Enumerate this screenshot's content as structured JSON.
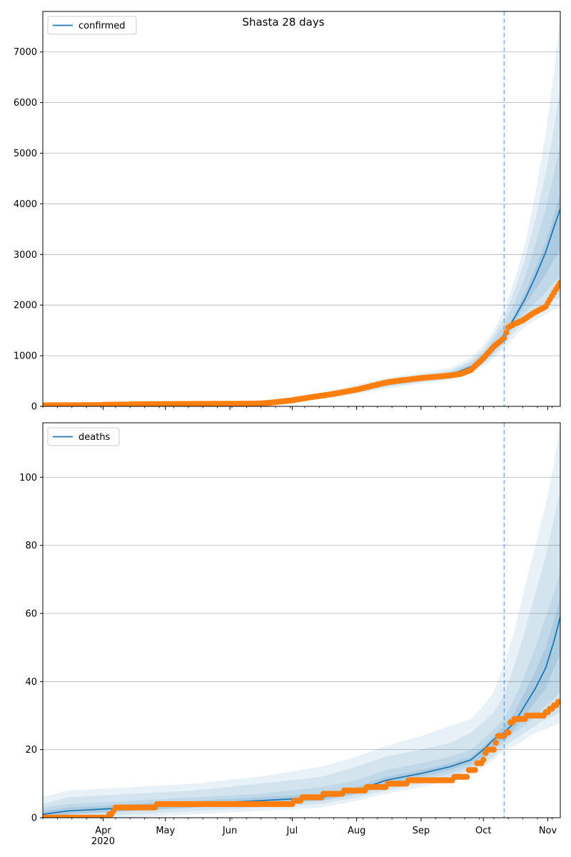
{
  "figure": {
    "title": "Shasta 28 days"
  },
  "chart_data": [
    {
      "type": "line",
      "title": "Shasta 28 days",
      "legend": {
        "label": "confirmed",
        "placement": "upper-left"
      },
      "xlim": [
        "2020-03-03",
        "2020-11-07"
      ],
      "ylim": [
        0,
        7800
      ],
      "yticks": [
        0,
        1000,
        2000,
        3000,
        4000,
        5000,
        6000,
        7000
      ],
      "grid": "y",
      "forecast_start": "2020-10-11",
      "model": {
        "x": [
          "2020-03-03",
          "2020-04-01",
          "2020-05-01",
          "2020-06-01",
          "2020-06-15",
          "2020-07-01",
          "2020-07-15",
          "2020-08-01",
          "2020-08-15",
          "2020-09-01",
          "2020-09-15",
          "2020-09-25",
          "2020-10-01",
          "2020-10-06",
          "2020-10-11",
          "2020-10-16",
          "2020-10-21",
          "2020-10-26",
          "2020-10-31",
          "2020-11-04",
          "2020-11-07"
        ],
        "y": [
          20,
          30,
          40,
          45,
          55,
          110,
          190,
          310,
          430,
          530,
          620,
          780,
          950,
          1150,
          1420,
          1750,
          2120,
          2560,
          3050,
          3550,
          3900
        ],
        "bands": [
          {
            "lo": [
              5,
              15,
              25,
              30,
              40,
              80,
              150,
              250,
              350,
              450,
              520,
              650,
              790,
              950,
              1150,
              1380,
              1580,
              1700,
              1820,
              1920,
              1960
            ],
            "hi": [
              40,
              50,
              60,
              70,
              90,
              160,
              260,
              420,
              560,
              660,
              760,
              960,
              1200,
              1500,
              1900,
              2500,
              3200,
              4200,
              5400,
              6600,
              7800
            ],
            "alpha": 0.1
          },
          {
            "lo": [
              10,
              20,
              30,
              35,
              45,
              90,
              165,
              270,
              380,
              480,
              550,
              690,
              840,
              1010,
              1230,
              1480,
              1700,
              1850,
              1990,
              2100,
              2150
            ],
            "hi": [
              32,
              42,
              50,
              58,
              75,
              140,
              230,
              380,
              510,
              610,
              710,
              900,
              1120,
              1400,
              1750,
              2300,
              2900,
              3700,
              4600,
              5500,
              6300
            ],
            "alpha": 0.1
          },
          {
            "lo": [
              12,
              22,
              32,
              38,
              48,
              95,
              175,
              285,
              400,
              500,
              575,
              720,
              880,
              1060,
              1300,
              1580,
              1850,
              2050,
              2250,
              2450,
              2550
            ],
            "hi": [
              28,
              38,
              46,
              52,
              66,
              128,
              210,
              350,
              475,
              575,
              675,
              860,
              1060,
              1320,
              1620,
              2050,
              2550,
              3200,
              3900,
              4600,
              5200
            ],
            "alpha": 0.1
          },
          {
            "lo": [
              15,
              25,
              35,
              40,
              50,
              100,
              180,
              295,
              415,
              515,
              595,
              750,
              920,
              1110,
              1370,
              1680,
              2000,
              2300,
              2600,
              2900,
              3100
            ],
            "hi": [
              25,
              35,
              43,
              48,
              60,
              118,
              198,
              325,
              445,
              545,
              645,
              810,
              980,
              1190,
              1470,
              1820,
              2240,
              2720,
              3250,
              3800,
              4200
            ],
            "alpha": 0.12
          }
        ]
      },
      "observed": {
        "x": [
          "2020-03-03",
          "2020-03-31",
          "2020-04-01",
          "2020-04-18",
          "2020-05-01",
          "2020-06-01",
          "2020-06-15",
          "2020-06-20",
          "2020-07-01",
          "2020-07-10",
          "2020-07-20",
          "2020-08-01",
          "2020-08-10",
          "2020-08-15",
          "2020-08-20",
          "2020-09-01",
          "2020-09-10",
          "2020-09-15",
          "2020-09-20",
          "2020-09-25",
          "2020-10-01",
          "2020-10-06",
          "2020-10-11",
          "2020-10-13",
          "2020-10-16",
          "2020-10-20",
          "2020-10-25",
          "2020-10-31",
          "2020-11-04",
          "2020-11-07"
        ],
        "y": [
          20,
          25,
          30,
          40,
          45,
          50,
          55,
          70,
          120,
          180,
          240,
          330,
          420,
          470,
          500,
          560,
          590,
          610,
          640,
          720,
          950,
          1180,
          1350,
          1560,
          1630,
          1700,
          1840,
          1970,
          2250,
          2440
        ]
      }
    },
    {
      "type": "line",
      "legend": {
        "label": "deaths",
        "placement": "upper-left"
      },
      "xlim": [
        "2020-03-03",
        "2020-11-07"
      ],
      "ylim": [
        0,
        116
      ],
      "yticks": [
        0,
        20,
        40,
        60,
        80,
        100
      ],
      "grid": "y",
      "forecast_start": "2020-10-11",
      "x_tick_labels": [
        "Apr",
        "May",
        "Jun",
        "Jul",
        "Aug",
        "Sep",
        "Oct",
        "Nov"
      ],
      "x_tick_dates": [
        "2020-04-01",
        "2020-05-01",
        "2020-06-01",
        "2020-07-01",
        "2020-08-01",
        "2020-09-01",
        "2020-10-01",
        "2020-11-01"
      ],
      "year_label": "2020",
      "model": {
        "x": [
          "2020-03-03",
          "2020-03-15",
          "2020-04-15",
          "2020-05-15",
          "2020-06-15",
          "2020-07-15",
          "2020-08-01",
          "2020-08-15",
          "2020-09-01",
          "2020-09-15",
          "2020-09-25",
          "2020-10-01",
          "2020-10-06",
          "2020-10-11",
          "2020-10-16",
          "2020-10-21",
          "2020-10-26",
          "2020-10-31",
          "2020-11-04",
          "2020-11-07"
        ],
        "y": [
          1,
          2,
          3,
          4,
          5,
          6,
          8,
          11,
          13,
          15,
          17,
          20,
          23,
          25,
          28,
          33,
          38,
          44,
          52,
          59
        ],
        "bands": [
          {
            "lo": [
              0,
              0,
              0,
              1,
              2,
              3,
              5,
              7,
              9,
              11,
              13,
              15,
              17,
              20,
              21,
              23,
              25,
              26,
              27,
              28
            ],
            "hi": [
              6,
              8,
              9,
              10,
              12,
              15,
              18,
              21,
              24,
              27,
              29,
              33,
              37,
              45,
              55,
              68,
              80,
              92,
              104,
              116
            ],
            "alpha": 0.1
          },
          {
            "lo": [
              0,
              0,
              1,
              2,
              3,
              4,
              6,
              8,
              10,
              12,
              14,
              16,
              18,
              21,
              23,
              25,
              27,
              29,
              30,
              31
            ],
            "hi": [
              4,
              6,
              7,
              8,
              10,
              12,
              15,
              18,
              20,
              22,
              25,
              28,
              31,
              36,
              45,
              55,
              66,
              77,
              88,
              96
            ],
            "alpha": 0.1
          },
          {
            "lo": [
              0,
              1,
              2,
              3,
              4,
              5,
              7,
              9,
              11,
              13,
              15,
              17,
              20,
              22,
              25,
              27,
              30,
              33,
              35,
              37
            ],
            "hi": [
              3,
              4,
              5,
              6,
              7,
              9,
              11,
              14,
              16,
              18,
              20,
              23,
              26,
              29,
              35,
              42,
              50,
              59,
              66,
              72
            ],
            "alpha": 0.1
          },
          {
            "lo": [
              0,
              1,
              2,
              3,
              4,
              5,
              7,
              10,
              12,
              14,
              16,
              18,
              21,
              23,
              26,
              30,
              34,
              38,
              44,
              48
            ],
            "hi": [
              2,
              3,
              4,
              5,
              6,
              7,
              9,
              12,
              14,
              16,
              18,
              21,
              24,
              27,
              31,
              37,
              43,
              50,
              58,
              65
            ],
            "alpha": 0.12
          }
        ]
      },
      "observed": {
        "x": [
          "2020-03-03",
          "2020-03-31",
          "2020-04-04",
          "2020-04-06",
          "2020-04-07",
          "2020-04-26",
          "2020-04-27",
          "2020-07-01",
          "2020-07-02",
          "2020-07-05",
          "2020-07-06",
          "2020-07-15",
          "2020-07-16",
          "2020-07-25",
          "2020-07-26",
          "2020-08-05",
          "2020-08-06",
          "2020-08-15",
          "2020-08-16",
          "2020-08-25",
          "2020-08-26",
          "2020-09-16",
          "2020-09-17",
          "2020-09-23",
          "2020-09-24",
          "2020-09-27",
          "2020-09-28",
          "2020-10-01",
          "2020-10-02",
          "2020-10-03",
          "2020-10-07",
          "2020-10-08",
          "2020-10-11",
          "2020-10-12",
          "2020-10-13",
          "2020-10-14",
          "2020-10-16",
          "2020-10-19",
          "2020-10-22",
          "2020-10-27",
          "2020-10-31",
          "2020-11-01",
          "2020-11-02",
          "2020-11-04",
          "2020-11-06"
        ],
        "y": [
          0,
          0,
          1,
          2,
          3,
          3,
          4,
          4,
          5,
          5,
          6,
          6,
          7,
          7,
          8,
          8,
          9,
          9,
          10,
          10,
          11,
          11,
          12,
          12,
          14,
          14,
          16,
          17,
          19,
          20,
          22,
          24,
          24,
          25,
          25,
          28,
          29,
          29,
          30,
          30,
          31,
          31,
          32,
          33,
          34
        ]
      }
    }
  ]
}
